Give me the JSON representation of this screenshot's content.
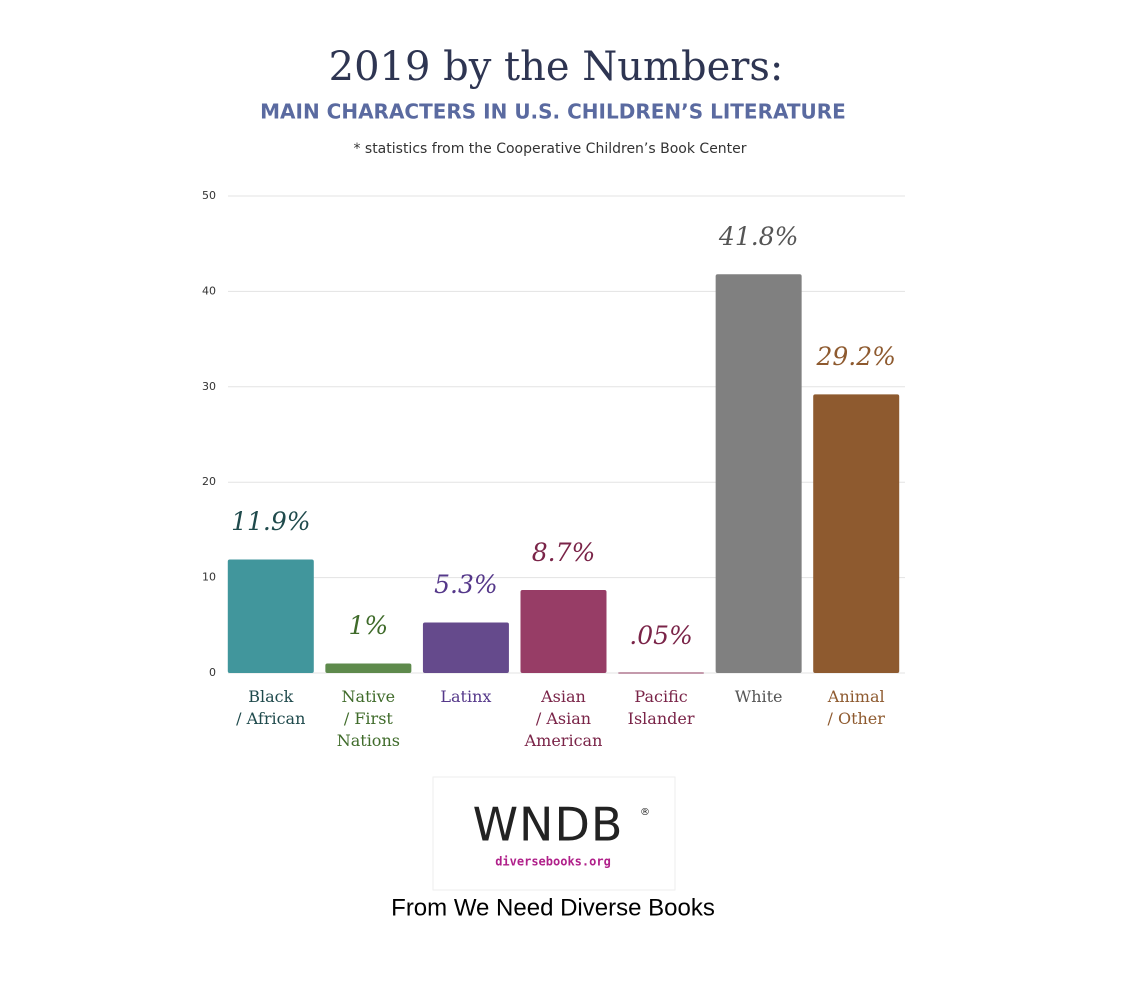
{
  "chart_data": {
    "type": "bar",
    "title": "2019 by the Numbers:",
    "subtitle": "MAIN CHARACTERS IN U.S. CHILDREN’S LITERATURE",
    "note": "* statistics from the Cooperative Children’s Book Center",
    "categories": [
      "Black\n/ African",
      "Native\n/ First\nNations",
      "Latinx",
      "Asian\n/ Asian\nAmerican",
      "Pacific\nIslander",
      "White",
      "Animal\n/ Other"
    ],
    "values": [
      11.9,
      1,
      5.3,
      8.7,
      0.05,
      41.8,
      29.2
    ],
    "value_labels": [
      "11.9%",
      "1%",
      "5.3%",
      "8.7%",
      ".05%",
      "41.8%",
      "29.2%"
    ],
    "colors": [
      "#41969c",
      "#5e8a4c",
      "#654a8c",
      "#973d66",
      "#8a3458",
      "#808080",
      "#8e5a2f"
    ],
    "label_colors": [
      "#1f4a4c",
      "#3f6b2a",
      "#55388a",
      "#7a2448",
      "#7a2448",
      "#555555",
      "#8e5a2f"
    ],
    "ylim": [
      0,
      50
    ],
    "yticks": [
      0,
      10,
      20,
      30,
      40,
      50
    ],
    "grid": true,
    "logo": {
      "text": "WNDB",
      "mark": "®",
      "url": "diversebooks.org"
    },
    "caption": "From We Need Diverse Books"
  }
}
